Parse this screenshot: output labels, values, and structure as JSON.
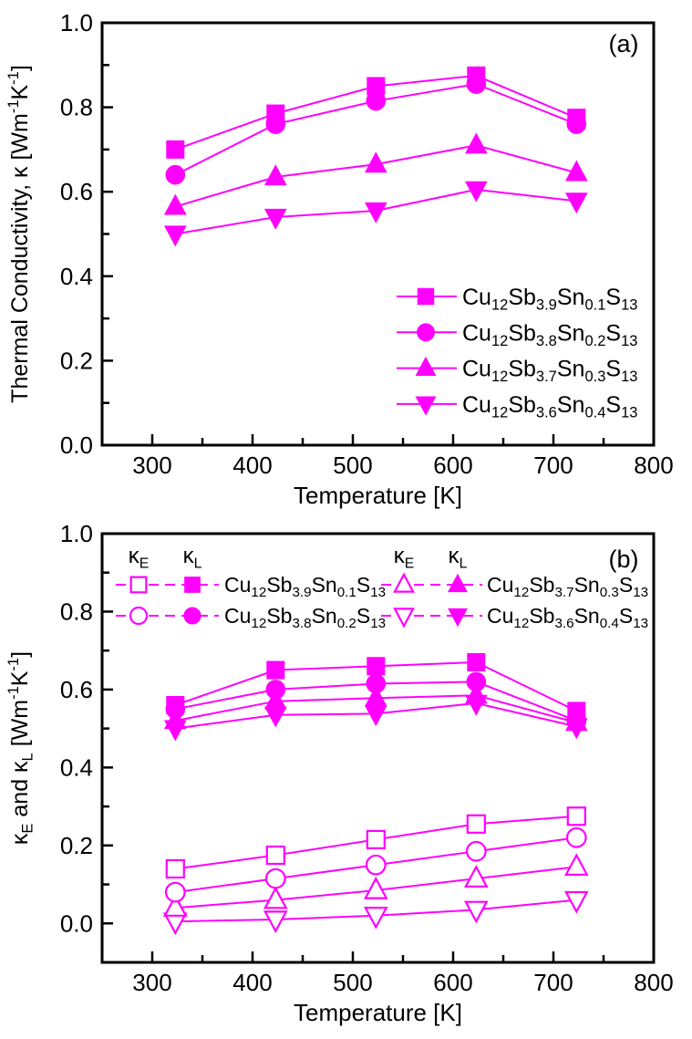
{
  "figure": {
    "background": "#ffffff",
    "accent_color": "#FF00FF",
    "axis_color": "#000000",
    "marker_open_fill": "#ffffff"
  },
  "chart_data": [
    {
      "id": "a",
      "type": "line",
      "panel_label": "(a)",
      "xlabel": "Temperature [K]",
      "ylabel": "Thermal Conductivity, κ [Wm^{-1}K^{-1}]",
      "xlim": [
        250,
        800
      ],
      "ylim": [
        0.0,
        1.0
      ],
      "xticks": [
        300,
        400,
        500,
        600,
        700,
        800
      ],
      "xtick_labels": [
        "300",
        "400",
        "500",
        "600",
        "700",
        "800"
      ],
      "xticks_minor": [
        350,
        450,
        550,
        650,
        750
      ],
      "yticks": [
        0.0,
        0.2,
        0.4,
        0.6,
        0.8,
        1.0
      ],
      "ytick_labels": [
        "0.0",
        "0.2",
        "0.4",
        "0.6",
        "0.8",
        "1.0"
      ],
      "yticks_minor": [
        0.1,
        0.3,
        0.5,
        0.7,
        0.9
      ],
      "grid": false,
      "legend_position": "lower right",
      "x": [
        323,
        423,
        523,
        623,
        723
      ],
      "series": [
        {
          "name": "Cu_{12}Sb_{3.9}Sn_{0.1}S_{13}",
          "marker": "square",
          "filled": true,
          "values": [
            0.7,
            0.785,
            0.85,
            0.875,
            0.775
          ]
        },
        {
          "name": "Cu_{12}Sb_{3.8}Sn_{0.2}S_{13}",
          "marker": "circle",
          "filled": true,
          "values": [
            0.64,
            0.76,
            0.815,
            0.855,
            0.76
          ]
        },
        {
          "name": "Cu_{12}Sb_{3.7}Sn_{0.3}S_{13}",
          "marker": "triangle-up",
          "filled": true,
          "values": [
            0.565,
            0.635,
            0.665,
            0.71,
            0.645
          ]
        },
        {
          "name": "Cu_{12}Sb_{3.6}Sn_{0.4}S_{13}",
          "marker": "triangle-down",
          "filled": true,
          "values": [
            0.5,
            0.54,
            0.555,
            0.605,
            0.578
          ]
        }
      ]
    },
    {
      "id": "b",
      "type": "line",
      "panel_label": "(b)",
      "xlabel": "Temperature [K]",
      "ylabel": "κ_{E} and κ_{L} [Wm^{-1}K^{-1}]",
      "xlim": [
        250,
        800
      ],
      "ylim": [
        -0.1,
        1.0
      ],
      "xticks": [
        300,
        400,
        500,
        600,
        700,
        800
      ],
      "xtick_labels": [
        "300",
        "400",
        "500",
        "600",
        "700",
        "800"
      ],
      "xticks_minor": [
        350,
        450,
        550,
        650,
        750
      ],
      "yticks": [
        0.0,
        0.2,
        0.4,
        0.6,
        0.8,
        1.0
      ],
      "ytick_labels": [
        "0.0",
        "0.2",
        "0.4",
        "0.6",
        "0.8",
        "1.0"
      ],
      "yticks_minor": [
        0.1,
        0.3,
        0.5,
        0.7,
        0.9
      ],
      "grid": false,
      "legend_position": "top",
      "x": [
        323,
        423,
        523,
        623,
        723
      ],
      "series": [
        {
          "name": "Cu_{12}Sb_{3.9}Sn_{0.1}S_{13}",
          "component": "κ_{E}",
          "marker": "square",
          "filled": false,
          "values": [
            0.14,
            0.175,
            0.215,
            0.255,
            0.275
          ]
        },
        {
          "name": "Cu_{12}Sb_{3.8}Sn_{0.2}S_{13}",
          "component": "κ_{E}",
          "marker": "circle",
          "filled": false,
          "values": [
            0.08,
            0.115,
            0.15,
            0.185,
            0.22
          ]
        },
        {
          "name": "Cu_{12}Sb_{3.7}Sn_{0.3}S_{13}",
          "component": "κ_{E}",
          "marker": "triangle-up",
          "filled": false,
          "values": [
            0.04,
            0.06,
            0.085,
            0.115,
            0.145
          ]
        },
        {
          "name": "Cu_{12}Sb_{3.6}Sn_{0.4}S_{13}",
          "component": "κ_{E}",
          "marker": "triangle-down",
          "filled": false,
          "values": [
            0.005,
            0.01,
            0.02,
            0.035,
            0.06
          ]
        },
        {
          "name": "Cu_{12}Sb_{3.9}Sn_{0.1}S_{13}",
          "component": "κ_{L}",
          "marker": "square",
          "filled": true,
          "values": [
            0.56,
            0.65,
            0.66,
            0.67,
            0.545
          ]
        },
        {
          "name": "Cu_{12}Sb_{3.8}Sn_{0.2}S_{13}",
          "component": "κ_{L}",
          "marker": "circle",
          "filled": true,
          "values": [
            0.55,
            0.6,
            0.615,
            0.62,
            0.52
          ]
        },
        {
          "name": "Cu_{12}Sb_{3.7}Sn_{0.3}S_{13}",
          "component": "κ_{L}",
          "marker": "triangle-up",
          "filled": true,
          "values": [
            0.52,
            0.57,
            0.578,
            0.585,
            0.515
          ]
        },
        {
          "name": "Cu_{12}Sb_{3.6}Sn_{0.4}S_{13}",
          "component": "κ_{L}",
          "marker": "triangle-down",
          "filled": true,
          "values": [
            0.5,
            0.535,
            0.538,
            0.565,
            0.505
          ]
        }
      ],
      "legend": {
        "groups": [
          {
            "headers": [
              "κ_{E}",
              "κ_{L}"
            ],
            "rows": [
              {
                "marker": "square",
                "label": "Cu_{12}Sb_{3.9}Sn_{0.1}S_{13}"
              },
              {
                "marker": "circle",
                "label": "Cu_{12}Sb_{3.8}Sn_{0.2}S_{13}"
              }
            ]
          },
          {
            "headers": [
              "κ_{E}",
              "κ_{L}"
            ],
            "rows": [
              {
                "marker": "triangle-up",
                "label": "Cu_{12}Sb_{3.7}Sn_{0.3}S_{13}"
              },
              {
                "marker": "triangle-down",
                "label": "Cu_{12}Sb_{3.6}Sn_{0.4}S_{13}"
              }
            ]
          }
        ]
      }
    }
  ]
}
